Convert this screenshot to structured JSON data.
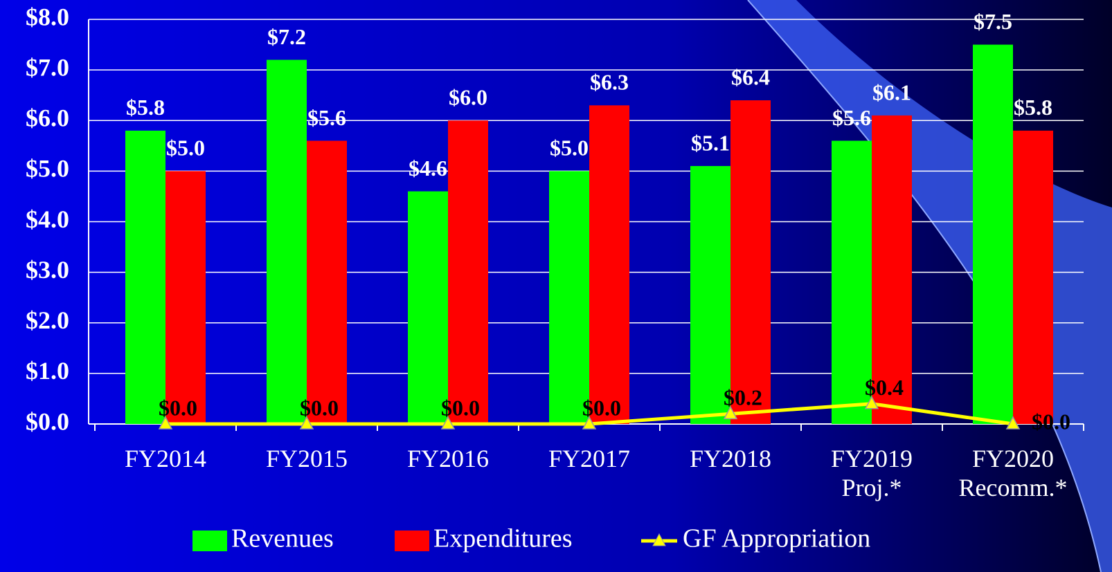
{
  "chart_data": {
    "type": "bar-line",
    "categories": [
      "FY2014",
      "FY2015",
      "FY2016",
      "FY2017",
      "FY2018",
      "FY2019\nProj.*",
      "FY2020\nRecomm.*"
    ],
    "series": [
      {
        "name": "Revenues",
        "type": "bar",
        "color": "#00ff00",
        "values": [
          5.8,
          7.2,
          4.6,
          5.0,
          5.1,
          5.6,
          7.5
        ],
        "value_labels": [
          "$5.8",
          "$7.2",
          "$4.6",
          "$5.0",
          "$5.1",
          "$5.6",
          "$7.5"
        ]
      },
      {
        "name": "Expenditures",
        "type": "bar",
        "color": "#ff0000",
        "values": [
          5.0,
          5.6,
          6.0,
          6.3,
          6.4,
          6.1,
          5.8
        ],
        "value_labels": [
          "$5.0",
          "$5.6",
          "$6.0",
          "$6.3",
          "$6.4",
          "$6.1",
          "$5.8"
        ]
      },
      {
        "name": "GF Appropriation",
        "type": "line",
        "color": "#ffff00",
        "values": [
          0.0,
          0.0,
          0.0,
          0.0,
          0.2,
          0.4,
          0.0
        ],
        "value_labels": [
          "$0.0",
          "$0.0",
          "$0.0",
          "$0.0",
          "$0.2",
          "$0.4",
          "$0.0"
        ]
      }
    ],
    "ylim": [
      0,
      8
    ],
    "yticks": [
      {
        "value": 0,
        "label": "$0.0"
      },
      {
        "value": 1,
        "label": "$1.0"
      },
      {
        "value": 2,
        "label": "$2.0"
      },
      {
        "value": 3,
        "label": "$3.0"
      },
      {
        "value": 4,
        "label": "$4.0"
      },
      {
        "value": 5,
        "label": "$5.0"
      },
      {
        "value": 6,
        "label": "$6.0"
      },
      {
        "value": 7,
        "label": "$7.0"
      },
      {
        "value": 8,
        "label": "$8.0"
      }
    ],
    "grid": true,
    "legend": "bottom"
  }
}
